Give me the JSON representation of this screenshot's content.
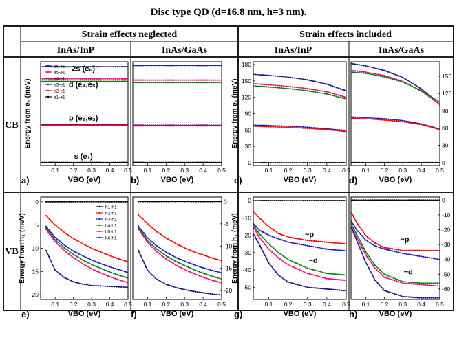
{
  "figure": {
    "title": "Disc type QD (d=16.8 nm, h=3 nm).",
    "group_headers": [
      "Strain effects neglected",
      "Strain effects included"
    ],
    "column_headers": [
      "InAs/InP",
      "InAs/GaAs",
      "InAs/InP",
      "InAs/GaAs"
    ],
    "row_headers": [
      "CB",
      "VB"
    ],
    "colors": {
      "black": "#000000",
      "red": "#ff0000",
      "green": "#008000",
      "blue": "#1a1acc",
      "magenta": "#ff0080",
      "navy": "#1a1a80"
    }
  },
  "chart_data": [
    {
      "panel": "a)",
      "type": "line",
      "xlabel": "VBO (eV)",
      "ylabel": "Energy from e₁ (meV)",
      "xlim": [
        0.02,
        0.5
      ],
      "ylim": [
        -5,
        165
      ],
      "xticks": [
        "0.1",
        "0.2",
        "0.3",
        "0.4",
        "0.5"
      ],
      "yticks": [],
      "yticks_right": [],
      "legend": [
        "e6-e1",
        "e5-e1",
        "e4-e1",
        "e3-e1",
        "e2-e1",
        "e1-e1"
      ],
      "annotations": [
        {
          "text": "2s (e₆)",
          "at": [
            0.255,
            150
          ]
        },
        {
          "text": "d (e₄,e₅)",
          "at": [
            0.255,
            124
          ]
        },
        {
          "text": "p (e₂,e₃)",
          "at": [
            0.255,
            69
          ]
        },
        {
          "text": "s (e₁)",
          "at": [
            0.255,
            6
          ]
        }
      ],
      "x": [
        0.02,
        0.5
      ],
      "series": [
        {
          "name": "e6-e1",
          "color": "navy",
          "values": [
            157,
            157
          ]
        },
        {
          "name": "e5-e1",
          "color": "magenta",
          "values": [
            137,
            137
          ]
        },
        {
          "name": "e4-e1",
          "color": "green",
          "values": [
            133,
            133
          ]
        },
        {
          "name": "e3-e1",
          "color": "blue",
          "values": [
            62,
            62
          ]
        },
        {
          "name": "e2-e1",
          "color": "red",
          "values": [
            61,
            61
          ]
        },
        {
          "name": "e1-e1",
          "color": "black",
          "values": [
            0,
            0
          ]
        }
      ]
    },
    {
      "panel": "b)",
      "type": "line",
      "xlabel": "VBO (eV)",
      "ylabel": "",
      "xlim": [
        0.02,
        0.5
      ],
      "ylim": [
        -5,
        165
      ],
      "xticks": [
        "0.1",
        "0.2",
        "0.3",
        "0.4",
        "0.5"
      ],
      "yticks": [],
      "yticks_right": [],
      "x": [
        0.02,
        0.5
      ],
      "series": [
        {
          "name": "e6-e1",
          "color": "navy",
          "values": [
            159,
            159
          ]
        },
        {
          "name": "e5-e1",
          "color": "magenta",
          "values": [
            135,
            135
          ]
        },
        {
          "name": "e4-e1",
          "color": "green",
          "values": [
            131,
            131
          ]
        },
        {
          "name": "e3-e1",
          "color": "blue",
          "values": [
            61,
            61
          ]
        },
        {
          "name": "e2-e1",
          "color": "red",
          "values": [
            60,
            60
          ]
        },
        {
          "name": "e1-e1",
          "color": "black",
          "values": [
            0,
            0
          ]
        }
      ]
    },
    {
      "panel": "c)",
      "type": "line",
      "xlabel": "VBO (eV)",
      "ylabel": "Energy from e₁ (meV)",
      "xlim": [
        0.02,
        0.5
      ],
      "ylim": [
        -5,
        185
      ],
      "xticks": [
        "0.1",
        "0.2",
        "0.3",
        "0.4",
        "0.5"
      ],
      "yticks": [
        "0",
        "30",
        "60",
        "90",
        "120",
        "150",
        "180"
      ],
      "yticks_right": [],
      "x": [
        0.02,
        0.1,
        0.2,
        0.3,
        0.4,
        0.5
      ],
      "series": [
        {
          "name": "e6-e1",
          "color": "navy",
          "values": [
            162,
            160,
            157,
            152,
            144,
            132
          ]
        },
        {
          "name": "e5-e1",
          "color": "magenta",
          "values": [
            145,
            143,
            140,
            136,
            130,
            120
          ]
        },
        {
          "name": "e4-e1",
          "color": "green",
          "values": [
            141,
            139,
            136,
            132,
            126,
            117
          ]
        },
        {
          "name": "e3-e1",
          "color": "blue",
          "values": [
            69,
            68,
            67,
            65,
            62,
            59
          ]
        },
        {
          "name": "e2-e1",
          "color": "red",
          "values": [
            67,
            66,
            65,
            63,
            61,
            57
          ]
        },
        {
          "name": "e1-e1",
          "color": "black",
          "values": [
            0,
            0,
            0,
            0,
            0,
            0
          ]
        }
      ]
    },
    {
      "panel": "d)",
      "type": "line",
      "xlabel": "VBO (eV)",
      "ylabel": "",
      "xlim": [
        0.02,
        0.5
      ],
      "ylim": [
        -5,
        175
      ],
      "xticks": [
        "0.1",
        "0.2",
        "0.3",
        "0.4",
        "0.5"
      ],
      "yticks": [],
      "yticks_right": [
        "0",
        "30",
        "60",
        "90",
        "120",
        "150"
      ],
      "x": [
        0.02,
        0.1,
        0.2,
        0.3,
        0.4,
        0.45,
        0.5
      ],
      "series": [
        {
          "name": "e6-e1",
          "color": "navy",
          "values": [
            172,
            168,
            160,
            148,
            128,
            115,
            100
          ]
        },
        {
          "name": "e5-e1",
          "color": "magenta",
          "values": [
            160,
            157,
            151,
            141,
            124,
            113,
            101
          ]
        },
        {
          "name": "e4-e1",
          "color": "green",
          "values": [
            157,
            155,
            149,
            140,
            125,
            115,
            105
          ]
        },
        {
          "name": "e3-e1",
          "color": "blue",
          "values": [
            79,
            78,
            76,
            73,
            67,
            63,
            58
          ]
        },
        {
          "name": "e2-e1",
          "color": "red",
          "values": [
            77,
            76,
            74,
            71,
            66,
            62,
            57
          ]
        },
        {
          "name": "e1-e1",
          "color": "black",
          "values": [
            0,
            0,
            0,
            0,
            0,
            0,
            0
          ]
        }
      ]
    },
    {
      "panel": "e)",
      "type": "line",
      "xlabel": "VBO (eV)",
      "ylabel": "Energy from h₁ (meV)",
      "xlim": [
        0.02,
        0.5
      ],
      "ylim": [
        -21,
        1
      ],
      "xticks": [
        "0.1",
        "0.2",
        "0.3",
        "0.4",
        "0.5"
      ],
      "yticks": [
        "0",
        "5",
        "10",
        "15",
        "20"
      ],
      "yticks_right": [],
      "legend": [
        "h1-h1",
        "h2-h1",
        "h3-h1",
        "h4-h1",
        "h5-h1",
        "h6-h1"
      ],
      "x": [
        0.05,
        0.1,
        0.15,
        0.2,
        0.25,
        0.3,
        0.35,
        0.4,
        0.45,
        0.5
      ],
      "series": [
        {
          "name": "h1-h1",
          "color": "black",
          "values": [
            0,
            0,
            0,
            0,
            0,
            0,
            0,
            0,
            0,
            0
          ]
        },
        {
          "name": "h2-h1",
          "color": "red",
          "values": [
            -3.0,
            -5.0,
            -6.6,
            -7.9,
            -9.0,
            -10.0,
            -10.8,
            -11.6,
            -12.3,
            -12.9
          ]
        },
        {
          "name": "h3-h1",
          "color": "blue",
          "values": [
            -5.3,
            -7.7,
            -9.3,
            -10.6,
            -11.6,
            -12.5,
            -13.3,
            -14.0,
            -14.6,
            -15.2
          ]
        },
        {
          "name": "h4-h1",
          "color": "green",
          "values": [
            -5.6,
            -8.2,
            -9.9,
            -11.3,
            -12.5,
            -13.5,
            -14.3,
            -15.1,
            -15.8,
            -16.4
          ]
        },
        {
          "name": "h5-h1",
          "color": "magenta",
          "values": [
            -5.9,
            -8.6,
            -10.5,
            -12.0,
            -13.3,
            -14.4,
            -15.3,
            -16.1,
            -16.8,
            -17.4
          ]
        },
        {
          "name": "h6-h1",
          "color": "navy",
          "values": [
            -10.5,
            -14.7,
            -16.3,
            -17.2,
            -17.7,
            -18.0,
            -18.1,
            -18.2,
            -18.3,
            -18.4
          ]
        }
      ]
    },
    {
      "panel": "f)",
      "type": "line",
      "xlabel": "VBO (eV)",
      "ylabel": "",
      "xlim": [
        0.02,
        0.5
      ],
      "ylim": [
        -22,
        1
      ],
      "xticks": [
        "0.1",
        "0.2",
        "0.3",
        "0.4",
        "0.5"
      ],
      "yticks": [],
      "yticks_right": [
        "0",
        "-5",
        "-10",
        "-15",
        "-20"
      ],
      "x": [
        0.05,
        0.1,
        0.15,
        0.2,
        0.25,
        0.3,
        0.35,
        0.4,
        0.45,
        0.5
      ],
      "series": [
        {
          "name": "h1-h1",
          "color": "black",
          "values": [
            0,
            0,
            0,
            0,
            0,
            0,
            0,
            0,
            0,
            0
          ]
        },
        {
          "name": "h2-h1",
          "color": "red",
          "values": [
            -3.0,
            -5.0,
            -6.8,
            -8.2,
            -9.4,
            -10.4,
            -11.3,
            -12.0,
            -12.7,
            -13.3
          ]
        },
        {
          "name": "h3-h1",
          "color": "blue",
          "values": [
            -5.5,
            -8.2,
            -10.0,
            -11.4,
            -12.5,
            -13.4,
            -14.2,
            -14.9,
            -15.5,
            -16.0
          ]
        },
        {
          "name": "h4-h1",
          "color": "green",
          "values": [
            -5.9,
            -8.8,
            -10.7,
            -12.2,
            -13.4,
            -14.4,
            -15.3,
            -16.1,
            -16.8,
            -17.4
          ]
        },
        {
          "name": "h5-h1",
          "color": "magenta",
          "values": [
            -6.2,
            -9.2,
            -11.3,
            -12.9,
            -14.2,
            -15.3,
            -16.2,
            -17.0,
            -17.7,
            -18.3
          ]
        },
        {
          "name": "h6-h1",
          "color": "navy",
          "values": [
            -11.0,
            -15.5,
            -17.5,
            -18.6,
            -19.3,
            -19.8,
            -20.2,
            -20.5,
            -20.8,
            -21.0
          ]
        }
      ]
    },
    {
      "panel": "g)",
      "type": "line",
      "xlabel": "VBO (eV)",
      "ylabel": "Energy from h₁ (meV)",
      "xlim": [
        0.02,
        0.5
      ],
      "ylim": [
        -57,
        2
      ],
      "xticks": [
        "0.1",
        "0.2",
        "0.3",
        "0.4",
        "0.5"
      ],
      "yticks": [
        "0",
        "-10",
        "-20",
        "-30",
        "-40",
        "-50"
      ],
      "yticks_right": [],
      "annotations": [
        {
          "text": "~p",
          "at": [
            0.31,
            -21
          ]
        },
        {
          "text": "~d",
          "at": [
            0.33,
            -36
          ]
        }
      ],
      "x": [
        0.02,
        0.05,
        0.1,
        0.15,
        0.2,
        0.3,
        0.4,
        0.5
      ],
      "series": [
        {
          "name": "h1-h1",
          "color": "black",
          "values": [
            0,
            0,
            0,
            0,
            0,
            0,
            0,
            0
          ]
        },
        {
          "name": "h2-h1",
          "color": "red",
          "values": [
            -6,
            -10,
            -15,
            -19,
            -21,
            -23,
            -24,
            -25
          ]
        },
        {
          "name": "h3-h1",
          "color": "blue",
          "values": [
            -13,
            -17,
            -20,
            -22,
            -24,
            -26,
            -28,
            -29
          ]
        },
        {
          "name": "h4-h1",
          "color": "green",
          "values": [
            -14,
            -19,
            -25,
            -30,
            -34,
            -39,
            -42,
            -43
          ]
        },
        {
          "name": "h5-h1",
          "color": "magenta",
          "values": [
            -15,
            -21,
            -28,
            -33,
            -37,
            -42,
            -45,
            -46
          ]
        },
        {
          "name": "h6-h1",
          "color": "navy",
          "values": [
            -19,
            -25,
            -36,
            -43,
            -47,
            -50,
            -51,
            -52
          ]
        }
      ]
    },
    {
      "panel": "h)",
      "type": "line",
      "xlabel": "VBO (eV)",
      "ylabel": "",
      "xlim": [
        0.02,
        0.5
      ],
      "ylim": [
        -67,
        2
      ],
      "xticks": [
        "0.1",
        "0.2",
        "0.3",
        "0.4",
        "0.5"
      ],
      "yticks": [],
      "yticks_right": [
        "0",
        "-10",
        "-20",
        "-30",
        "-40",
        "-50",
        "-60"
      ],
      "annotations": [
        {
          "text": "~p",
          "at": [
            0.31,
            -28
          ]
        },
        {
          "text": "~d",
          "at": [
            0.33,
            -50
          ]
        }
      ],
      "x": [
        0.02,
        0.05,
        0.1,
        0.15,
        0.2,
        0.3,
        0.4,
        0.5
      ],
      "series": [
        {
          "name": "h1-h1",
          "color": "black",
          "values": [
            0,
            0,
            0,
            0,
            0,
            0,
            0,
            0
          ]
        },
        {
          "name": "h2-h1",
          "color": "red",
          "values": [
            -8,
            -15,
            -24,
            -29,
            -32,
            -34,
            -34,
            -34
          ]
        },
        {
          "name": "h3-h1",
          "color": "blue",
          "values": [
            -14,
            -20,
            -27,
            -31,
            -33,
            -36,
            -38,
            -40
          ]
        },
        {
          "name": "h4-h1",
          "color": "green",
          "values": [
            -16,
            -23,
            -35,
            -44,
            -50,
            -55,
            -56,
            -56
          ]
        },
        {
          "name": "h5-h1",
          "color": "magenta",
          "values": [
            -17,
            -25,
            -37,
            -46,
            -52,
            -56,
            -57,
            -58
          ]
        },
        {
          "name": "h6-h1",
          "color": "navy",
          "values": [
            -18,
            -27,
            -42,
            -54,
            -61,
            -65,
            -66,
            -66
          ]
        }
      ]
    }
  ]
}
